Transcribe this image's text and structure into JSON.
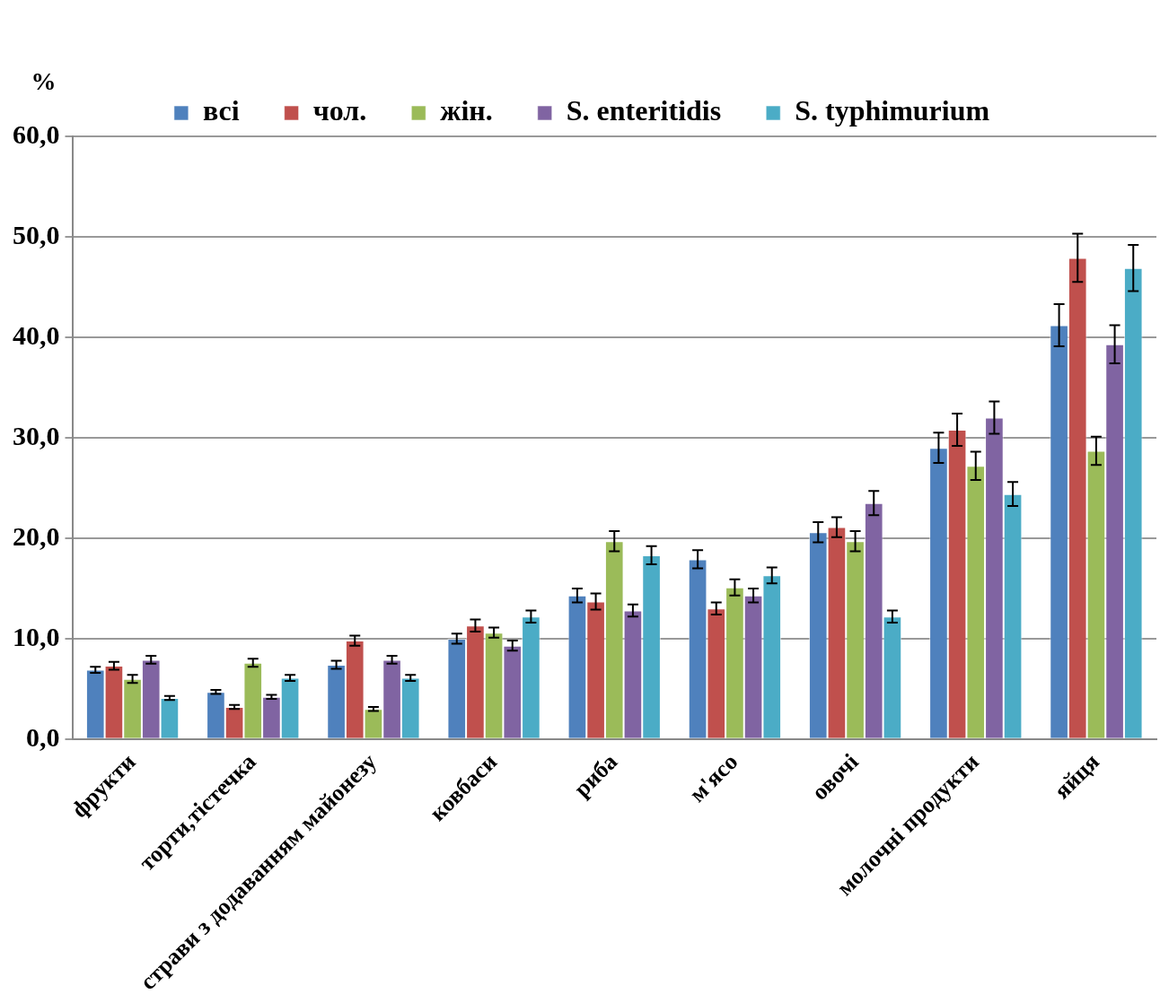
{
  "chart_data": {
    "type": "bar",
    "ylabel": "%",
    "categories": [
      "фрукти",
      "торти,тістечка",
      "страви з додаванням майонезу",
      "ковбаси",
      "риба",
      "м'ясо",
      "овочі",
      "молочні продукти",
      "яйця"
    ],
    "series": [
      {
        "name": "всі",
        "color": "#4f81bd",
        "values": [
          6.9,
          4.7,
          7.4,
          10.0,
          14.3,
          17.9,
          20.6,
          29.0,
          41.2
        ],
        "errors": [
          0.3,
          0.2,
          0.4,
          0.5,
          0.7,
          0.9,
          1.0,
          1.5,
          2.1
        ]
      },
      {
        "name": "чол.",
        "color": "#c0504d",
        "values": [
          7.3,
          3.2,
          9.8,
          11.3,
          13.7,
          13.0,
          21.1,
          30.8,
          47.9
        ],
        "errors": [
          0.4,
          0.2,
          0.5,
          0.6,
          0.8,
          0.6,
          1.0,
          1.6,
          2.4
        ]
      },
      {
        "name": "жін.",
        "color": "#9bbb59",
        "values": [
          6.0,
          7.6,
          3.0,
          10.6,
          19.7,
          15.1,
          19.7,
          27.2,
          28.7
        ],
        "errors": [
          0.4,
          0.4,
          0.2,
          0.5,
          1.0,
          0.8,
          1.0,
          1.4,
          1.4
        ]
      },
      {
        "name": "S. enteritidis",
        "color": "#8064a2",
        "values": [
          7.9,
          4.2,
          7.9,
          9.3,
          12.8,
          14.3,
          23.5,
          32.0,
          39.3
        ],
        "errors": [
          0.4,
          0.2,
          0.4,
          0.5,
          0.6,
          0.7,
          1.2,
          1.6,
          1.9
        ]
      },
      {
        "name": "S. typhimurium",
        "color": "#4bacc6",
        "values": [
          4.1,
          6.1,
          6.1,
          12.2,
          18.3,
          16.3,
          12.2,
          24.4,
          46.9
        ],
        "errors": [
          0.2,
          0.3,
          0.3,
          0.6,
          0.9,
          0.8,
          0.6,
          1.2,
          2.3
        ]
      }
    ],
    "ylim": [
      0,
      60
    ],
    "yticks": [
      {
        "value": 0,
        "label": "0,0"
      },
      {
        "value": 10,
        "label": "10,0"
      },
      {
        "value": 20,
        "label": "20,0"
      },
      {
        "value": 30,
        "label": "30,0"
      },
      {
        "value": 40,
        "label": "40,0"
      },
      {
        "value": 50,
        "label": "50,0"
      },
      {
        "value": 60,
        "label": "60,0"
      }
    ],
    "grid": "y",
    "legend": "top"
  }
}
